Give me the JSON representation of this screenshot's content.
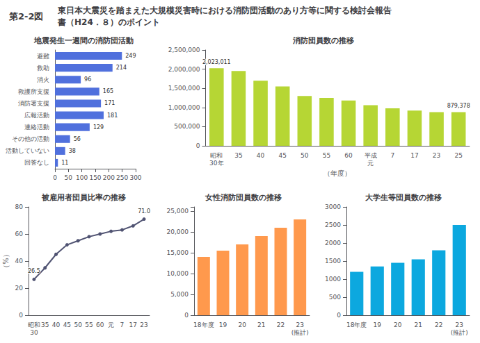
{
  "annotations": [
    "第2-2図",
    "東日本大震災を踏まえた大規模災害時における消防団活動のあり方等に関する検討会報告",
    "書（H24．８）のポイント"
  ],
  "chart_data": [
    {
      "type": "bar",
      "orientation": "horizontal",
      "title": "地震発生一週間の消防団活動",
      "categories": [
        "避難",
        "救助",
        "消火",
        "救護所支援",
        "消防署支援",
        "広報活動",
        "連絡活動",
        "その他の活動",
        "活動していない",
        "回答なし"
      ],
      "values": [
        249,
        214,
        96,
        165,
        171,
        181,
        129,
        56,
        38,
        11
      ],
      "xlim": [
        0,
        300
      ],
      "xticks": [
        0,
        50,
        100,
        150,
        200,
        250,
        300
      ],
      "data_labels": true,
      "grid": false
    },
    {
      "type": "bar",
      "title": "消防団員数の推移",
      "categories": [
        "昭和\n30年",
        "35",
        "40",
        "45",
        "50",
        "55",
        "60",
        "平成\n元",
        "7",
        "17",
        "23",
        "25"
      ],
      "values": [
        2023011,
        1950000,
        1700000,
        1550000,
        1300000,
        1250000,
        1180000,
        1060000,
        980000,
        920000,
        880000,
        879378
      ],
      "value_labels": [
        "2,023,011",
        null,
        null,
        null,
        null,
        null,
        null,
        null,
        null,
        null,
        null,
        "879,378"
      ],
      "data_labels": true,
      "xlabel": "（年度）",
      "ylim": [
        0,
        2500000
      ],
      "yticks": [
        0,
        {
          "value": 500000,
          "label": "500,000"
        },
        {
          "value": 1000000,
          "label": "1,000,000"
        },
        {
          "value": 1500000,
          "label": "1,500,000"
        },
        {
          "value": 2000000,
          "label": "2,000,000"
        },
        {
          "value": 2500000,
          "label": "2,500,000"
        }
      ],
      "grid": false
    },
    {
      "type": "line",
      "title": "被雇用者団員比率の推移",
      "categories": [
        "昭和\n30",
        "35",
        "40",
        "45",
        "50",
        "55",
        "60",
        "元",
        "7",
        "17",
        "23"
      ],
      "values": [
        26.5,
        35,
        45,
        52,
        55,
        58,
        60,
        62,
        63,
        66,
        71.0
      ],
      "value_labels": [
        "26.5",
        null,
        null,
        null,
        null,
        null,
        null,
        null,
        null,
        null,
        "71.0"
      ],
      "data_labels": true,
      "marker": "circle",
      "ylabel": "（%）",
      "ylim": [
        0,
        80
      ],
      "yticks": [
        0,
        20,
        40,
        60,
        80
      ],
      "grid": false
    },
    {
      "type": "bar",
      "title": "女性消防団員数の推移",
      "categories": [
        "18年度",
        "19",
        "20",
        "21",
        "22",
        "23\n(推計)"
      ],
      "values": [
        14000,
        15500,
        17000,
        19000,
        21000,
        23000
      ],
      "ylim": [
        0,
        26000
      ],
      "yticks": [
        0,
        {
          "value": 5000,
          "label": "5,000"
        },
        {
          "value": 10000,
          "label": "10,000"
        },
        {
          "value": 15000,
          "label": "15,000"
        },
        {
          "value": 20000,
          "label": "20,000"
        },
        {
          "value": 25000,
          "label": "25,000"
        }
      ],
      "grid": false
    },
    {
      "type": "bar",
      "title": "大学生等団員数の推移",
      "categories": [
        "18年度",
        "19",
        "20",
        "21",
        "22",
        "23\n(推計)"
      ],
      "values": [
        1200,
        1350,
        1450,
        1550,
        1800,
        2500
      ],
      "ylim": [
        0,
        3000
      ],
      "yticks": [
        0,
        500,
        1000,
        1500,
        2000,
        2500,
        3000
      ],
      "grid": false
    }
  ]
}
